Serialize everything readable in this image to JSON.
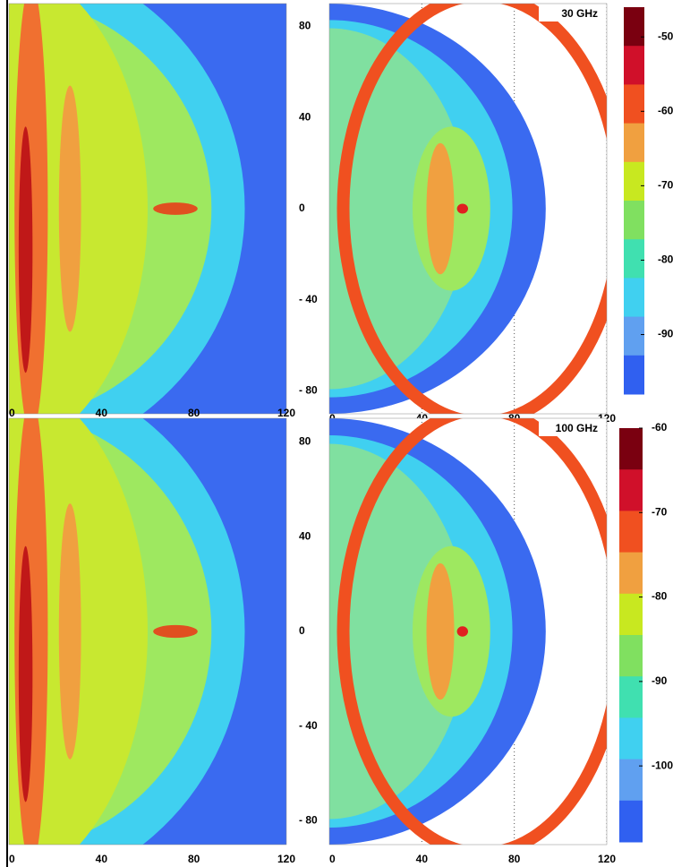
{
  "chart_data": [
    {
      "type": "heatmap",
      "xlim": [
        0,
        120
      ],
      "xticks": [
        0,
        40,
        80,
        120
      ],
      "ylim": [
        -90,
        90
      ],
      "yticks": [
        80,
        40,
        0,
        {
          "value": -40,
          "label": "- 40"
        },
        {
          "value": -80,
          "label": "- 80"
        }
      ],
      "style": "blue"
    },
    {
      "type": "heatmap",
      "xlim": [
        0,
        120
      ],
      "xticks": [
        0,
        40,
        80,
        120
      ],
      "ylim": [
        -90,
        90
      ],
      "grid": true,
      "style": "white",
      "annotation": "30 GHz",
      "colorbar": {
        "clim": [
          -98,
          -46
        ],
        "ticks": [
          -50,
          -60,
          -70,
          -80,
          -90
        ],
        "colors": [
          "#7a0010",
          "#d0102a",
          "#f05020",
          "#f0a040",
          "#c8e820",
          "#80e060",
          "#40e0b0",
          "#40d0f0",
          "#60a0f0",
          "#3060f0"
        ]
      }
    },
    {
      "type": "heatmap",
      "xlim": [
        0,
        120
      ],
      "xticks": [
        0,
        40,
        80,
        120
      ],
      "ylim": [
        -90,
        90
      ],
      "yticks": [
        80,
        40,
        0,
        {
          "value": -40,
          "label": "- 40"
        },
        {
          "value": -80,
          "label": "- 80"
        }
      ],
      "style": "blue"
    },
    {
      "type": "heatmap",
      "xlim": [
        0,
        120
      ],
      "xticks": [
        0,
        40,
        80,
        120
      ],
      "ylim": [
        -90,
        90
      ],
      "grid": true,
      "style": "white",
      "annotation": "100 GHz",
      "colorbar": {
        "clim": [
          -109,
          -60
        ],
        "ticks": [
          -60,
          -70,
          -80,
          -90,
          -100
        ],
        "colors": [
          "#7a0010",
          "#d0102a",
          "#f05020",
          "#f0a040",
          "#c8e820",
          "#80e060",
          "#40e0b0",
          "#40d0f0",
          "#60a0f0",
          "#3060f0"
        ]
      }
    }
  ]
}
